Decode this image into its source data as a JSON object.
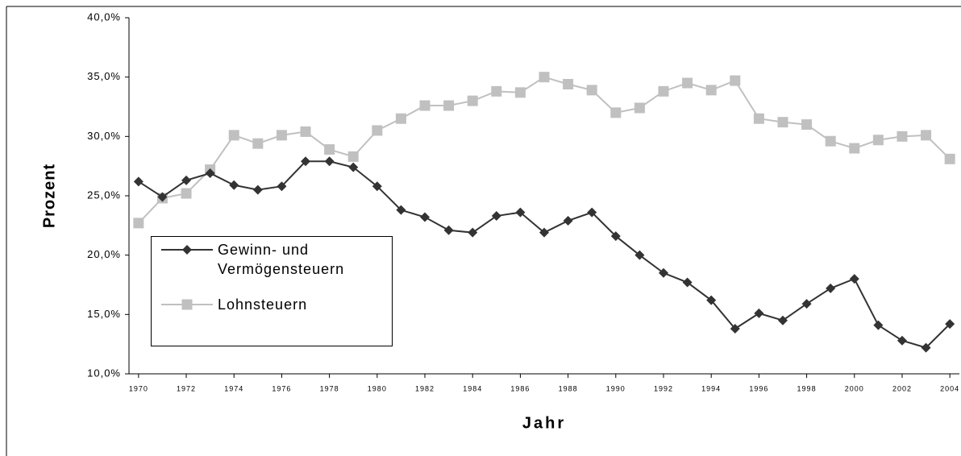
{
  "chart_data": {
    "type": "line",
    "x_label": "Jahr",
    "y_label": "Prozent",
    "x": [
      1970,
      1971,
      1972,
      1973,
      1974,
      1975,
      1976,
      1977,
      1978,
      1979,
      1980,
      1981,
      1982,
      1983,
      1984,
      1985,
      1986,
      1987,
      1988,
      1989,
      1990,
      1991,
      1992,
      1993,
      1994,
      1995,
      1996,
      1997,
      1998,
      1999,
      2000,
      2001,
      2002,
      2003,
      2004
    ],
    "series": [
      {
        "name": "Gewinn- und Vermögensteuern",
        "color": "#333333",
        "marker": "diamond",
        "values": [
          26.2,
          24.9,
          26.3,
          26.9,
          25.9,
          25.5,
          25.8,
          27.9,
          27.9,
          27.4,
          25.8,
          23.8,
          23.2,
          22.1,
          21.9,
          23.3,
          23.6,
          21.9,
          22.9,
          23.6,
          21.6,
          20.0,
          18.5,
          17.7,
          16.2,
          13.8,
          15.1,
          14.5,
          15.9,
          17.2,
          18.0,
          14.1,
          12.8,
          12.2,
          14.2
        ]
      },
      {
        "name": "Lohnsteuern",
        "color": "#c0c0c0",
        "marker": "square",
        "values": [
          22.7,
          24.8,
          25.2,
          27.2,
          30.1,
          29.4,
          30.1,
          30.4,
          28.9,
          28.3,
          30.5,
          31.5,
          32.6,
          32.6,
          33.0,
          33.8,
          33.7,
          35.0,
          34.4,
          33.9,
          32.0,
          32.4,
          33.8,
          34.5,
          33.9,
          34.7,
          31.5,
          31.2,
          31.0,
          29.6,
          29.0,
          29.7,
          30.0,
          30.1,
          28.1
        ]
      }
    ],
    "xlim": [
      1969.6,
      2004.4
    ],
    "xticks": [
      1970,
      1972,
      1974,
      1976,
      1978,
      1980,
      1982,
      1984,
      1986,
      1988,
      1990,
      1992,
      1994,
      1996,
      1998,
      2000,
      2002,
      2004
    ],
    "ylim": [
      10,
      40
    ],
    "yticks": [
      {
        "value": 10,
        "label": "10,0%"
      },
      {
        "value": 15,
        "label": "15,0%"
      },
      {
        "value": 20,
        "label": "20,0%"
      },
      {
        "value": 25,
        "label": "25,0%"
      },
      {
        "value": 30,
        "label": "30,0%"
      },
      {
        "value": 35,
        "label": "35,0%"
      },
      {
        "value": 40,
        "label": "40,0%"
      }
    ],
    "grid": false,
    "legend": "lower-left"
  }
}
